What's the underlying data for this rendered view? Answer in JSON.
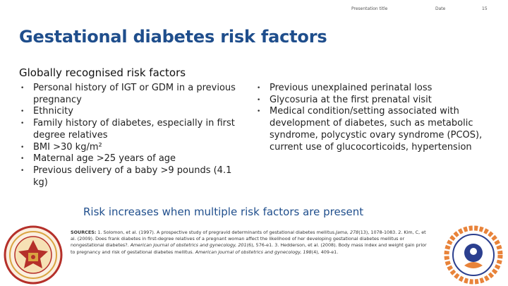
{
  "header": {
    "presentation_title": "Presentation title",
    "date": "Date",
    "page_number": "15"
  },
  "title": "Gestational diabetes risk factors",
  "subtitle": "Globally recognised risk factors",
  "left_factors": [
    "Personal history of IGT or GDM in a previous pregnancy",
    "Ethnicity",
    "Family history of diabetes, especially in first degree relatives",
    "BMI >30 kg/m²",
    "Maternal age >25 years of age",
    "Previous delivery of a baby >9 pounds (4.1 kg)"
  ],
  "right_factors": [
    "Previous unexplained perinatal loss",
    "Glycosuria at the first prenatal visit",
    "Medical condition/setting associated with development of diabetes, such as metabolic syndrome, polycystic ovary syndrome (PCOS), current use of glucocorticoids, hypertension"
  ],
  "bullet_symbol": "•",
  "highlight": "Risk increases when multiple risk factors are present",
  "sources": {
    "label": "SOURCES:",
    "s1_text": " 1. Solomon, et al. (1997). A prospective study of pregravid determinants of gestational diabetes mellitus.",
    "s1_journal": "Jama, 278",
    "s1_rest": "(13), 1078-1083. 2. Kim, C, et al. (2009). Does frank diabetes in first-degree relatives of a pregnant woman affect the likelihood of her developing gestational diabetes mellitus or nongestational diabetes?. ",
    "s2_journal": "American journal of obstetrics and gynecology, 201",
    "s2_rest": "(6), 576-e1. 3. Hedderson, et al. (2008). Body mass index and weight gain prior to pregnancy and risk of gestational diabetes mellitus. ",
    "s3_journal": "American journal of obstetrics and gynecology, 198",
    "s3_rest": "(4), 409-e1."
  },
  "colors": {
    "title": "#1f4e8c",
    "highlight": "#1f4e8c",
    "seal_red": "#b5302a",
    "seal_gold": "#d9a441",
    "ring_orange": "#e8833a",
    "ring_navy": "#2b3f8f"
  }
}
